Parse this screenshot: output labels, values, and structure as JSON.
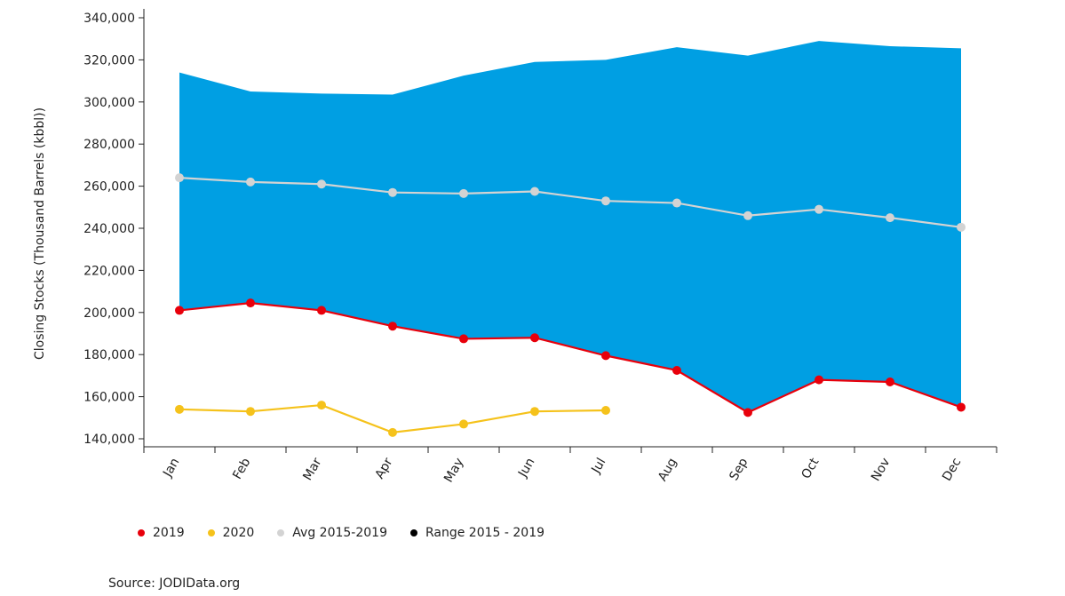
{
  "chart_data": {
    "type": "line",
    "title": "",
    "xlabel": "",
    "ylabel": "Closing Stocks (Thousand Barrels (kbbl))",
    "categories": [
      "Jan",
      "Feb",
      "Mar",
      "Apr",
      "May",
      "Jun",
      "Jul",
      "Aug",
      "Sep",
      "Oct",
      "Nov",
      "Dec"
    ],
    "ylim": [
      140000,
      340000
    ],
    "yticks": [
      140000,
      160000,
      180000,
      200000,
      220000,
      240000,
      260000,
      280000,
      300000,
      320000,
      340000
    ],
    "ytick_labels": [
      "140,000",
      "160,000",
      "180,000",
      "200,000",
      "220,000",
      "240,000",
      "260,000",
      "280,000",
      "300,000",
      "320,000",
      "340,000"
    ],
    "range": {
      "name": "Range 2015 - 2019",
      "color": "#009fe3",
      "low": [
        201000,
        204500,
        201000,
        193500,
        187500,
        188000,
        179500,
        172500,
        152500,
        168000,
        167000,
        155000
      ],
      "high": [
        314000,
        305000,
        304000,
        303500,
        312500,
        319000,
        320000,
        326000,
        322000,
        329000,
        326500,
        325500
      ]
    },
    "series": [
      {
        "name": "2019",
        "color": "#e8000b",
        "values": [
          201000,
          204500,
          201000,
          193500,
          187500,
          188000,
          179500,
          172500,
          152500,
          168000,
          167000,
          155000
        ]
      },
      {
        "name": "2020",
        "color": "#f5c21b",
        "values": [
          154000,
          153000,
          156000,
          143000,
          147000,
          153000,
          153500,
          null,
          null,
          null,
          null,
          null
        ]
      },
      {
        "name": "Avg 2015-2019",
        "color": "#d3d3d3",
        "values": [
          264000,
          262000,
          261000,
          257000,
          256500,
          257500,
          253000,
          252000,
          246000,
          249000,
          245000,
          240500
        ]
      }
    ],
    "legend": {
      "position": "bottom-left",
      "items": [
        {
          "label": "2019",
          "color": "#e8000b"
        },
        {
          "label": "2020",
          "color": "#f5c21b"
        },
        {
          "label": "Avg 2015-2019",
          "color": "#d3d3d3"
        },
        {
          "label": "Range 2015 - 2019",
          "color": "#000000"
        }
      ]
    },
    "source": "Source: JODIData.org"
  }
}
